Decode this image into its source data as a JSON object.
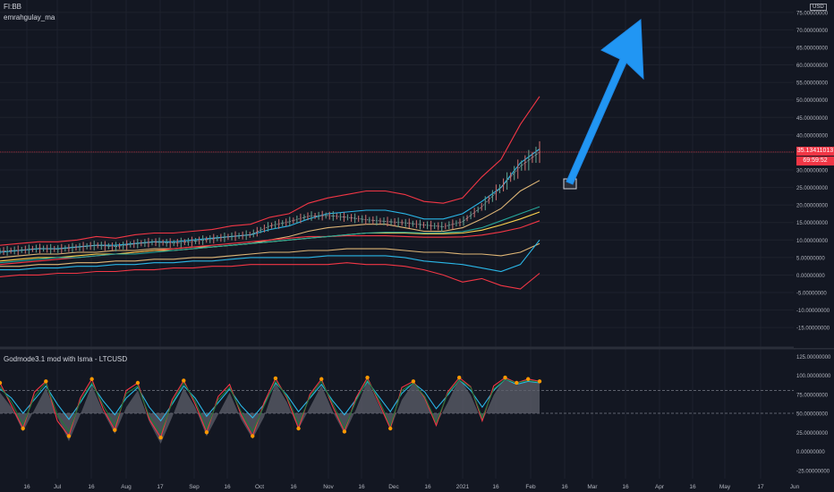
{
  "header": {
    "symbol": "FI:BB",
    "indicator": "emrahgulay_ma",
    "currency": "USD"
  },
  "price_tags": {
    "last_price": "35.13411013",
    "countdown": "69:59:52"
  },
  "chart_data": [
    {
      "type": "line",
      "title": "",
      "x_ticks": [
        "16",
        "Jul",
        "16",
        "Aug",
        "17",
        "Sep",
        "16",
        "Oct",
        "16",
        "Nov",
        "16",
        "Dec",
        "16",
        "2021",
        "16",
        "Feb",
        "16",
        "Mar",
        "16",
        "Apr",
        "16",
        "May",
        "17",
        "Jun"
      ],
      "y_ticks": [
        "75.00000000",
        "70.00000000",
        "65.00000000",
        "60.00000000",
        "55.00000000",
        "50.00000000",
        "45.00000000",
        "40.00000000",
        "35.00000000",
        "30.00000000",
        "25.00000000",
        "20.00000000",
        "15.00000000",
        "10.00000000",
        "5.00000000",
        "0.00000000",
        "-5.00000000",
        "-10.00000000",
        "-15.00000000"
      ],
      "ylim": [
        -17,
        77
      ],
      "grid": true,
      "price_line": 35.13,
      "series": [
        {
          "kind": "band",
          "color": "#f23645",
          "values": [
            8.5,
            9,
            9.5,
            9.5,
            10,
            11,
            10.5,
            11.5,
            12,
            12,
            12.5,
            13,
            14,
            14.5,
            16.5,
            17.5,
            20.5,
            22,
            23,
            24,
            24,
            23,
            21,
            20.5,
            22,
            28,
            33,
            43,
            51
          ]
        },
        {
          "kind": "band",
          "color": "#2ab7e8",
          "values": [
            6.5,
            7,
            7.5,
            7.5,
            8,
            8.5,
            8.5,
            9,
            9.5,
            9.5,
            10,
            10.5,
            11,
            11.5,
            13,
            14,
            16,
            17.5,
            18,
            18.5,
            18.5,
            17.5,
            16,
            16,
            17.5,
            21,
            25,
            32,
            36
          ]
        },
        {
          "kind": "band",
          "color": "#e0b777",
          "values": [
            5,
            5.5,
            6,
            6,
            6.5,
            6.5,
            7,
            7,
            7.5,
            7.5,
            8,
            8,
            8.5,
            9,
            10,
            11,
            12.5,
            13.5,
            14,
            14.5,
            14.5,
            13.5,
            12.5,
            12.5,
            13.5,
            16,
            19,
            24,
            27
          ]
        },
        {
          "kind": "ma",
          "color": "#f23645",
          "values": [
            3,
            3.5,
            4,
            4.5,
            5,
            5.5,
            6,
            6.5,
            7,
            7.5,
            8,
            8.5,
            9,
            9.5,
            10,
            10.5,
            11,
            11,
            11.2,
            11.2,
            11.2,
            11,
            10.8,
            10.8,
            10.9,
            11.4,
            12.3,
            13.5,
            15.5
          ]
        },
        {
          "kind": "ma",
          "color": "#ffd54f",
          "values": [
            4,
            4.5,
            5,
            5,
            5.5,
            6,
            6,
            6.5,
            7,
            7,
            7.5,
            8,
            8.5,
            9,
            9.5,
            10,
            10.5,
            11,
            11.5,
            12,
            12,
            12,
            11.8,
            11.8,
            12,
            12.8,
            14.3,
            16,
            18
          ]
        },
        {
          "kind": "ma",
          "color": "#26a69a",
          "values": [
            3.5,
            4,
            4.5,
            5,
            5,
            5.5,
            6,
            6,
            6.5,
            7,
            7.5,
            8,
            8.5,
            9,
            9.5,
            10,
            10.5,
            11,
            11.5,
            12,
            12.2,
            12.2,
            12,
            12.1,
            12.4,
            13.5,
            15.5,
            17.5,
            19.5
          ]
        },
        {
          "kind": "band",
          "color": "#e0b777",
          "values": [
            2.5,
            2.5,
            3,
            3,
            3.5,
            3.5,
            4,
            4,
            4.5,
            4.5,
            5,
            5,
            5.5,
            6,
            6.5,
            6.5,
            7,
            7,
            7.5,
            7.5,
            7.5,
            7,
            6.5,
            6.5,
            6,
            6,
            5.5,
            6.5,
            9
          ]
        },
        {
          "kind": "band",
          "color": "#2ab7e8",
          "values": [
            1.5,
            1.5,
            2,
            2,
            2.5,
            2.5,
            3,
            3,
            3.5,
            3.5,
            4,
            4,
            4.5,
            5,
            5,
            5,
            5,
            5.5,
            5.5,
            5.5,
            5.5,
            5,
            4,
            3.5,
            3,
            2,
            1,
            3,
            10
          ]
        },
        {
          "kind": "band",
          "color": "#f23645",
          "values": [
            -0.5,
            0,
            0,
            0.5,
            0.5,
            1,
            1,
            1.5,
            1.5,
            2,
            2,
            2.5,
            2.5,
            3,
            3,
            3,
            3,
            3,
            3.5,
            3,
            3,
            2.5,
            1.5,
            0,
            -2,
            -1,
            -3,
            -4,
            0.5
          ]
        },
        {
          "kind": "price",
          "color": "#9ea3ad",
          "values": [
            6.8,
            7.1,
            7.6,
            7.4,
            7.9,
            8.5,
            8.1,
            8.9,
            9.4,
            9.1,
            9.6,
            10.3,
            11,
            11.5,
            14,
            15.2,
            16.8,
            17,
            16.5,
            15.8,
            15.3,
            14.9,
            14.3,
            13.8,
            15.2,
            19.5,
            25,
            31,
            35.1
          ]
        }
      ]
    },
    {
      "type": "line",
      "title": "Godmode3.1 mod with lsma - LTCUSD",
      "y_ticks": [
        "125.00000000",
        "100.00000000",
        "75.00000000",
        "50.00000000",
        "25.00000000",
        "0.00000000",
        "-25.00000000"
      ],
      "ylim": [
        -30,
        130
      ],
      "levels": [
        80,
        50
      ],
      "series": [
        {
          "name": "",
          "color": "#2ab7e8",
          "values": [
            82,
            70,
            50,
            68,
            86,
            62,
            42,
            64,
            88,
            66,
            48,
            70,
            84,
            58,
            40,
            62,
            86,
            70,
            46,
            64,
            82,
            60,
            44,
            62,
            90,
            74,
            52,
            70,
            88,
            66,
            48,
            68,
            92,
            72,
            52,
            76,
            90,
            78,
            56,
            74,
            94,
            80,
            58,
            80,
            95,
            88,
            92,
            90
          ]
        },
        {
          "name": "",
          "color": "#f23645",
          "values": [
            90,
            60,
            30,
            78,
            92,
            40,
            20,
            70,
            95,
            55,
            28,
            80,
            90,
            42,
            18,
            68,
            93,
            62,
            25,
            72,
            88,
            48,
            20,
            64,
            96,
            70,
            30,
            75,
            95,
            58,
            26,
            70,
            97,
            64,
            30,
            84,
            92,
            70,
            34,
            78,
            97,
            85,
            40,
            86,
            97,
            90,
            95,
            92
          ]
        },
        {
          "name": "",
          "color": "#1f7a3a",
          "values": [
            85,
            65,
            35,
            72,
            90,
            48,
            26,
            66,
            90,
            60,
            34,
            76,
            86,
            46,
            24,
            64,
            90,
            66,
            30,
            68,
            84,
            52,
            26,
            60,
            92,
            72,
            36,
            72,
            92,
            62,
            30,
            66,
            94,
            68,
            34,
            80,
            90,
            72,
            38,
            76,
            94,
            84,
            44,
            82,
            95,
            90,
            93,
            91
          ]
        }
      ]
    }
  ]
}
